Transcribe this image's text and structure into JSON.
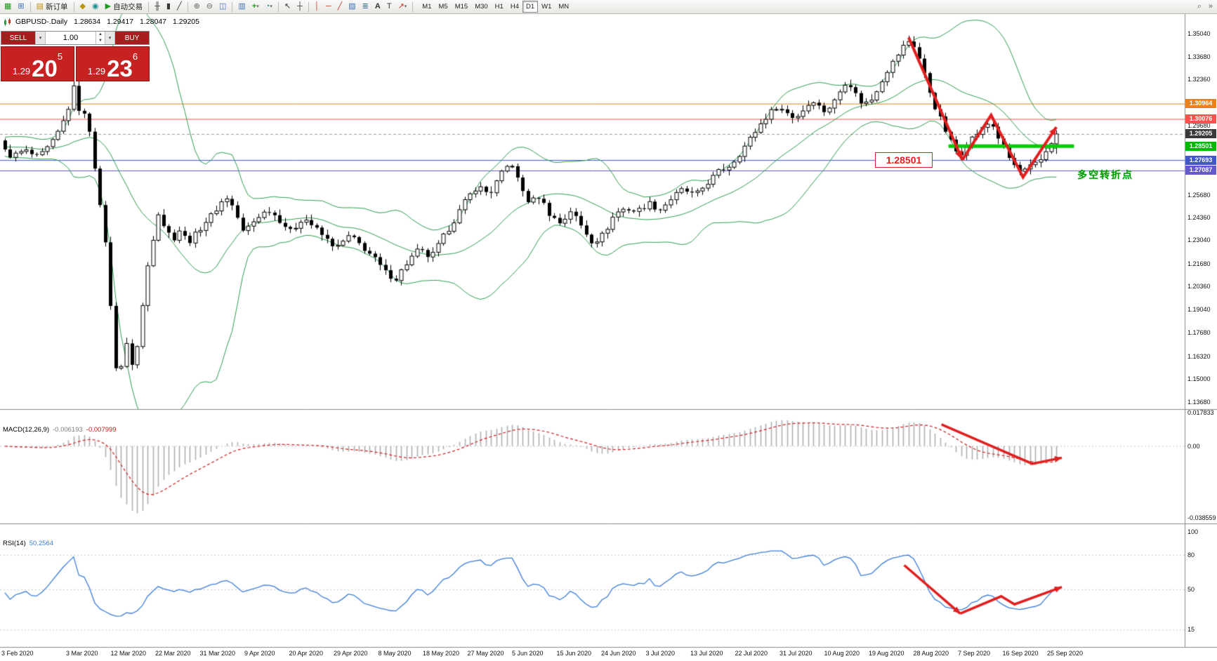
{
  "toolbar": {
    "new_order_label": "新订单",
    "auto_trading_label": "自动交易",
    "text_tool_label": "A",
    "label_tool_label": "T",
    "timeframes": [
      "M1",
      "M5",
      "M15",
      "M30",
      "H1",
      "H4",
      "D1",
      "W1",
      "MN"
    ],
    "active_timeframe": "D1"
  },
  "icons": {
    "new_chart": "▦",
    "profiles": "⊞",
    "new_order_doc": "▤",
    "expert_diamond": "◆",
    "data_window": "◉",
    "play": "▶",
    "bar_chart": "╫",
    "candle_chart": "▮",
    "line_chart": "╱",
    "zoom_in": "⊕",
    "zoom_out": "⊖",
    "tile_windows": "◫",
    "arrange": "▥",
    "indicators_add": "+",
    "caret": "▾",
    "clock": "◔",
    "cursor": "↖",
    "crosshair": "┼",
    "vline": "│",
    "hline": "─",
    "trendline": "╱",
    "channel": "▨",
    "fibonacci": "≣",
    "arrows_tool": "↗",
    "search": "⌕",
    "scroll_end": "»"
  },
  "chart_header": {
    "title": "GBPUSD-.Daily",
    "open": "1.28634",
    "high": "1.29417",
    "low": "1.28047",
    "close": "1.29205"
  },
  "trade_panel": {
    "sell_label": "SELL",
    "buy_label": "BUY",
    "volume": "1.00",
    "bid_prefix": "1.29",
    "bid_big": "20",
    "bid_sup": "5",
    "ask_prefix": "1.29",
    "ask_big": "23",
    "ask_sup": "6"
  },
  "indicators": {
    "macd_label": "MACD(12,26,9)",
    "macd_value": "-0.006193",
    "macd_signal": "-0.007999",
    "rsi_label": "RSI(14)",
    "rsi_value": "50.2564"
  },
  "annotations": {
    "price_alert": "1.28501",
    "turning_point": "多空转折点"
  },
  "price_axis": {
    "ticks": [
      "1.35040",
      "1.33680",
      "1.32360",
      "1.29680",
      "1.25680",
      "1.24360",
      "1.23040",
      "1.21680",
      "1.20360",
      "1.19040",
      "1.17680",
      "1.16320",
      "1.15000",
      "1.13680"
    ],
    "tick_values": [
      1.3504,
      1.3368,
      1.3236,
      1.2968,
      1.2568,
      1.2436,
      1.2304,
      1.2168,
      1.2036,
      1.1904,
      1.1768,
      1.1632,
      1.15,
      1.1368
    ],
    "tags": [
      {
        "label": "1.30964",
        "price": 1.30964,
        "bg": "#e8821e",
        "line": "#e8821e",
        "dash": false
      },
      {
        "label": "1.30076",
        "price": 1.30076,
        "bg": "#ff4f4f",
        "line": "#ff4f4f",
        "dash": false
      },
      {
        "label": "1.29205",
        "price": 1.29205,
        "bg": "#3a3a3a",
        "line": "#999999",
        "dash": true
      },
      {
        "label": "1.28501",
        "price": 1.28501,
        "bg": "#00b800",
        "line": null,
        "dash": false
      },
      {
        "label": "1.27693",
        "price": 1.27693,
        "bg": "#4156c8",
        "line": "#4156c8",
        "dash": false
      },
      {
        "label": "1.27087",
        "price": 1.27087,
        "bg": "#6459c8",
        "line": "#6459c8",
        "dash": false
      }
    ]
  },
  "macd_axis": [
    {
      "label": "0.017833",
      "value": 0.017833
    },
    {
      "label": "0.00",
      "value": 0
    },
    {
      "label": "-0.038559",
      "value": -0.038559
    }
  ],
  "rsi_axis": [
    {
      "label": "100",
      "value": 100
    },
    {
      "label": "80",
      "value": 80
    },
    {
      "label": "50",
      "value": 50
    },
    {
      "label": "15",
      "value": 15
    }
  ],
  "date_axis": [
    "3 Feb 2020",
    "3 Mar 2020",
    "12 Mar 2020",
    "22 Mar 2020",
    "31 Mar 2020",
    "9 Apr 2020",
    "20 Apr 2020",
    "29 Apr 2020",
    "8 May 2020",
    "18 May 2020",
    "27 May 2020",
    "5 Jun 2020",
    "15 Jun 2020",
    "24 Jun 2020",
    "3 Jul 2020",
    "13 Jul 2020",
    "22 Jul 2020",
    "31 Jul 2020",
    "10 Aug 2020",
    "19 Aug 2020",
    "28 Aug 2020",
    "7 Sep 2020",
    "16 Sep 2020",
    "25 Sep 2020"
  ],
  "colors": {
    "arrow": "#e01f1f",
    "green_line": "#00cc00",
    "bollinger": "#2f9e4f",
    "rsi_line": "#3b7dd8",
    "macd_hist": "#b0b0b0",
    "macd_signal": "#cc2020",
    "candle_up": "#ffffff",
    "candle_down": "#000000",
    "wick": "#000000",
    "separator": "#8c8c8c",
    "grid_dot": "#c8c8c8"
  },
  "chart_data": [
    {
      "type": "candlestick",
      "symbol": "GBPUSD-",
      "timeframe": "Daily",
      "ohlc_current": {
        "open": 1.28634,
        "high": 1.29417,
        "low": 1.28047,
        "close": 1.29205
      },
      "ylim": [
        1.1325,
        1.3616
      ],
      "levels": [
        1.30964,
        1.30076,
        1.29205,
        1.28501,
        1.27693,
        1.27087
      ],
      "bollinger": {
        "period": 20,
        "deviation": 2
      },
      "price_path_keypoints": [
        [
          0.0,
          1.284
        ],
        [
          0.01,
          1.279
        ],
        [
          0.02,
          1.2825
        ],
        [
          0.031,
          1.278
        ],
        [
          0.042,
          1.286
        ],
        [
          0.05,
          1.296
        ],
        [
          0.057,
          1.309
        ],
        [
          0.061,
          1.32
        ],
        [
          0.067,
          1.299
        ],
        [
          0.071,
          1.306
        ],
        [
          0.077,
          1.278
        ],
        [
          0.082,
          1.25
        ],
        [
          0.087,
          1.228
        ],
        [
          0.091,
          1.19
        ],
        [
          0.094,
          1.162
        ],
        [
          0.098,
          1.147
        ],
        [
          0.102,
          1.175
        ],
        [
          0.106,
          1.163
        ],
        [
          0.11,
          1.156
        ],
        [
          0.115,
          1.181
        ],
        [
          0.12,
          1.211
        ],
        [
          0.125,
          1.23
        ],
        [
          0.13,
          1.247
        ],
        [
          0.135,
          1.238
        ],
        [
          0.142,
          1.231
        ],
        [
          0.148,
          1.237
        ],
        [
          0.154,
          1.229
        ],
        [
          0.161,
          1.234
        ],
        [
          0.167,
          1.24
        ],
        [
          0.174,
          1.245
        ],
        [
          0.18,
          1.251
        ],
        [
          0.186,
          1.2555
        ],
        [
          0.193,
          1.248
        ],
        [
          0.199,
          1.235
        ],
        [
          0.205,
          1.239
        ],
        [
          0.213,
          1.245
        ],
        [
          0.221,
          1.248
        ],
        [
          0.23,
          1.242
        ],
        [
          0.239,
          1.235
        ],
        [
          0.249,
          1.244
        ],
        [
          0.258,
          1.238
        ],
        [
          0.268,
          1.231
        ],
        [
          0.277,
          1.226
        ],
        [
          0.287,
          1.233
        ],
        [
          0.297,
          1.227
        ],
        [
          0.306,
          1.221
        ],
        [
          0.316,
          1.212
        ],
        [
          0.325,
          1.208
        ],
        [
          0.335,
          1.218
        ],
        [
          0.344,
          1.225
        ],
        [
          0.354,
          1.22
        ],
        [
          0.364,
          1.232
        ],
        [
          0.373,
          1.242
        ],
        [
          0.383,
          1.254
        ],
        [
          0.392,
          1.262
        ],
        [
          0.402,
          1.257
        ],
        [
          0.411,
          1.268
        ],
        [
          0.42,
          1.276
        ],
        [
          0.427,
          1.262
        ],
        [
          0.435,
          1.252
        ],
        [
          0.443,
          1.256
        ],
        [
          0.452,
          1.245
        ],
        [
          0.461,
          1.24
        ],
        [
          0.469,
          1.248
        ],
        [
          0.478,
          1.238
        ],
        [
          0.487,
          1.229
        ],
        [
          0.496,
          1.234
        ],
        [
          0.505,
          1.246
        ],
        [
          0.514,
          1.249
        ],
        [
          0.523,
          1.247
        ],
        [
          0.533,
          1.252
        ],
        [
          0.542,
          1.248
        ],
        [
          0.552,
          1.255
        ],
        [
          0.561,
          1.26
        ],
        [
          0.571,
          1.256
        ],
        [
          0.58,
          1.263
        ],
        [
          0.59,
          1.27
        ],
        [
          0.6,
          1.274
        ],
        [
          0.609,
          1.282
        ],
        [
          0.619,
          1.292
        ],
        [
          0.628,
          1.301
        ],
        [
          0.638,
          1.308
        ],
        [
          0.645,
          1.305
        ],
        [
          0.653,
          1.301
        ],
        [
          0.661,
          1.307
        ],
        [
          0.668,
          1.312
        ],
        [
          0.676,
          1.305
        ],
        [
          0.684,
          1.309
        ],
        [
          0.691,
          1.318
        ],
        [
          0.696,
          1.324
        ],
        [
          0.703,
          1.315
        ],
        [
          0.709,
          1.309
        ],
        [
          0.716,
          1.312
        ],
        [
          0.722,
          1.32
        ],
        [
          0.728,
          1.328
        ],
        [
          0.735,
          1.335
        ],
        [
          0.741,
          1.342
        ],
        [
          0.748,
          1.347
        ],
        [
          0.753,
          1.34
        ],
        [
          0.758,
          1.33
        ],
        [
          0.763,
          1.318
        ],
        [
          0.768,
          1.308
        ],
        [
          0.773,
          1.3
        ],
        [
          0.778,
          1.292
        ],
        [
          0.783,
          1.285
        ],
        [
          0.788,
          1.279
        ],
        [
          0.793,
          1.285
        ],
        [
          0.799,
          1.29
        ],
        [
          0.804,
          1.293
        ],
        [
          0.809,
          1.296
        ],
        [
          0.814,
          1.2995
        ],
        [
          0.819,
          1.292
        ],
        [
          0.824,
          1.284
        ],
        [
          0.829,
          1.278
        ],
        [
          0.834,
          1.273
        ],
        [
          0.839,
          1.269
        ],
        [
          0.844,
          1.272
        ],
        [
          0.85,
          1.274
        ],
        [
          0.855,
          1.277
        ],
        [
          0.86,
          1.283
        ],
        [
          0.864,
          1.288
        ],
        [
          0.868,
          1.292
        ]
      ]
    },
    {
      "type": "bar",
      "name": "MACD",
      "params": "12,26,9",
      "current_values": [
        -0.006193,
        -0.007999
      ],
      "ylim": [
        -0.0414,
        0.019
      ],
      "y_ticks": [
        "0.017833",
        "0.00",
        "-0.038559"
      ],
      "derived_from": "MACD(12,26,9) computed over price_path closes"
    },
    {
      "type": "line",
      "name": "RSI",
      "params": "14",
      "current_value": 50.2564,
      "levels": [
        80,
        50,
        15
      ],
      "ylim": [
        0,
        100
      ],
      "y_ticks": [
        "100",
        "80",
        "50",
        "15"
      ],
      "derived_from": "RSI(14) computed over price_path closes"
    }
  ],
  "drawings": {
    "green_line": {
      "price": 1.28501,
      "f1": 0.7794,
      "f2": 0.8825,
      "width": 5
    },
    "main_arrows": [
      {
        "points": [
          [
            0.7466,
            1.348
          ],
          [
            0.7908,
            1.277
          ]
        ]
      },
      {
        "points": [
          [
            0.7908,
            1.277
          ],
          [
            0.8144,
            1.303
          ],
          [
            0.8406,
            1.267
          ],
          [
            0.868,
            1.296
          ]
        ]
      }
    ],
    "macd_arrows": [
      {
        "points": [
          [
            0.7736,
            0.0115
          ],
          [
            0.8482,
            -0.0095
          ],
          [
            0.8725,
            -0.0063
          ]
        ]
      }
    ],
    "rsi_arrows": [
      {
        "points": [
          [
            0.743,
            71
          ],
          [
            0.789,
            29
          ]
        ]
      },
      {
        "points": [
          [
            0.789,
            29
          ],
          [
            0.8227,
            44
          ],
          [
            0.8336,
            37
          ],
          [
            0.8725,
            52
          ]
        ]
      }
    ]
  }
}
